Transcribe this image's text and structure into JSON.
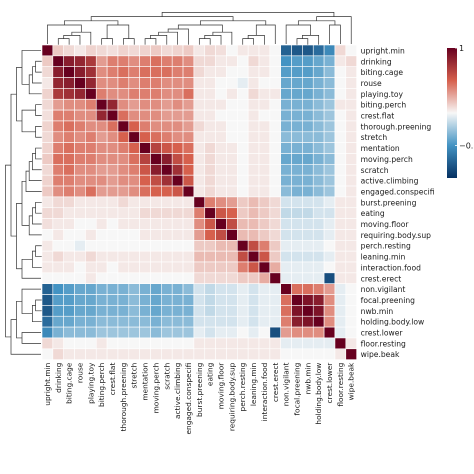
{
  "chart_data": {
    "type": "heatmap",
    "labels": [
      "upright.min",
      "drinking",
      "biting.cage",
      "rouse",
      "playing.toy",
      "biting.perch",
      "crest.flat",
      "thorough.preening",
      "stretch",
      "mentation",
      "moving.perch",
      "scratch",
      "active.climbing",
      "engaged.conspecifi",
      "burst.preening",
      "eating",
      "moving.floor",
      "requiring.body.sup",
      "perch.resting",
      "leaning.min",
      "interaction.food",
      "crest.erect",
      "non.vigilant",
      "focal.preening",
      "nwb.min",
      "holding.body.low",
      "crest.lower",
      "floor.resting",
      "wipe.beak"
    ],
    "values": [
      [
        1.0,
        0.15,
        0.1,
        0.05,
        0.12,
        0.1,
        0.08,
        0.12,
        0.1,
        0.12,
        0.15,
        0.1,
        0.12,
        0.15,
        0.05,
        0.1,
        0.08,
        0.0,
        0.05,
        0.05,
        0.05,
        0.0,
        -0.75,
        -0.8,
        -0.8,
        -0.7,
        -0.55,
        0.1,
        0.0
      ],
      [
        0.15,
        1.0,
        0.85,
        0.8,
        0.7,
        0.3,
        0.4,
        0.4,
        0.35,
        0.4,
        0.45,
        0.4,
        0.4,
        0.35,
        0.1,
        0.1,
        0.05,
        0.05,
        0.0,
        0.1,
        0.05,
        0.0,
        -0.5,
        -0.45,
        -0.45,
        -0.4,
        -0.35,
        0.05,
        0.1
      ],
      [
        0.1,
        0.85,
        1.0,
        0.85,
        0.75,
        0.35,
        0.4,
        0.45,
        0.4,
        0.45,
        0.45,
        0.45,
        0.4,
        0.4,
        0.1,
        0.05,
        0.05,
        0.0,
        0.0,
        0.05,
        0.05,
        0.0,
        -0.45,
        -0.45,
        -0.45,
        -0.4,
        -0.3,
        0.0,
        0.05
      ],
      [
        0.05,
        0.8,
        0.85,
        1.0,
        0.8,
        0.35,
        0.35,
        0.4,
        0.35,
        0.4,
        0.4,
        0.35,
        0.35,
        0.35,
        0.05,
        0.05,
        0.0,
        0.0,
        -0.05,
        0.05,
        0.0,
        0.0,
        -0.4,
        -0.4,
        -0.4,
        -0.35,
        -0.3,
        0.0,
        0.05
      ],
      [
        0.12,
        0.7,
        0.75,
        0.8,
        1.0,
        0.4,
        0.35,
        0.35,
        0.4,
        0.4,
        0.4,
        0.35,
        0.35,
        0.45,
        0.05,
        0.05,
        0.0,
        0.05,
        0.0,
        0.1,
        0.05,
        0.05,
        -0.4,
        -0.4,
        -0.4,
        -0.35,
        -0.3,
        0.0,
        0.05
      ],
      [
        0.1,
        0.3,
        0.35,
        0.35,
        0.4,
        1.0,
        0.8,
        0.35,
        0.3,
        0.35,
        0.35,
        0.3,
        0.35,
        0.3,
        0.05,
        0.05,
        0.05,
        0.0,
        0.0,
        0.05,
        0.05,
        0.0,
        -0.35,
        -0.35,
        -0.35,
        -0.3,
        -0.25,
        0.05,
        0.05
      ],
      [
        0.08,
        0.4,
        0.4,
        0.35,
        0.35,
        0.8,
        1.0,
        0.45,
        0.35,
        0.35,
        0.35,
        0.3,
        0.3,
        0.3,
        0.05,
        0.05,
        0.0,
        0.0,
        0.0,
        0.05,
        0.0,
        0.0,
        -0.35,
        -0.35,
        -0.35,
        -0.3,
        -0.25,
        0.0,
        0.05
      ],
      [
        0.12,
        0.4,
        0.45,
        0.4,
        0.35,
        0.35,
        0.45,
        1.0,
        0.5,
        0.4,
        0.35,
        0.35,
        0.35,
        0.3,
        0.1,
        0.05,
        0.05,
        0.0,
        0.0,
        0.05,
        0.05,
        0.0,
        -0.35,
        -0.35,
        -0.35,
        -0.3,
        -0.25,
        0.0,
        0.05
      ],
      [
        0.1,
        0.35,
        0.4,
        0.35,
        0.4,
        0.3,
        0.35,
        0.5,
        1.0,
        0.5,
        0.45,
        0.4,
        0.35,
        0.35,
        0.05,
        0.05,
        0.05,
        0.0,
        0.0,
        0.05,
        0.05,
        0.0,
        -0.3,
        -0.3,
        -0.3,
        -0.3,
        -0.25,
        0.0,
        0.05
      ],
      [
        0.12,
        0.4,
        0.45,
        0.4,
        0.4,
        0.35,
        0.35,
        0.4,
        0.5,
        1.0,
        0.65,
        0.55,
        0.5,
        0.45,
        0.05,
        0.1,
        0.05,
        0.05,
        0.0,
        0.05,
        0.05,
        0.0,
        -0.35,
        -0.35,
        -0.35,
        -0.3,
        -0.25,
        0.0,
        0.05
      ],
      [
        0.15,
        0.45,
        0.45,
        0.4,
        0.4,
        0.35,
        0.35,
        0.35,
        0.45,
        0.65,
        1.0,
        0.85,
        0.6,
        0.5,
        0.05,
        0.1,
        0.05,
        0.05,
        0.0,
        0.05,
        0.05,
        0.0,
        -0.4,
        -0.4,
        -0.4,
        -0.35,
        -0.3,
        0.0,
        0.05
      ],
      [
        0.1,
        0.4,
        0.45,
        0.35,
        0.35,
        0.3,
        0.3,
        0.35,
        0.4,
        0.55,
        0.85,
        1.0,
        0.75,
        0.5,
        0.05,
        0.1,
        0.05,
        0.05,
        0.0,
        0.05,
        0.05,
        0.0,
        -0.35,
        -0.35,
        -0.35,
        -0.3,
        -0.25,
        0.0,
        0.05
      ],
      [
        0.12,
        0.4,
        0.4,
        0.35,
        0.35,
        0.35,
        0.3,
        0.35,
        0.35,
        0.5,
        0.6,
        0.75,
        1.0,
        0.55,
        0.05,
        0.1,
        0.05,
        0.05,
        0.0,
        0.05,
        0.05,
        0.0,
        -0.35,
        -0.35,
        -0.35,
        -0.3,
        -0.25,
        0.0,
        0.05
      ],
      [
        0.15,
        0.35,
        0.4,
        0.35,
        0.45,
        0.3,
        0.3,
        0.3,
        0.35,
        0.45,
        0.5,
        0.5,
        0.55,
        1.0,
        0.05,
        0.1,
        0.05,
        0.05,
        0.0,
        0.05,
        0.05,
        0.0,
        -0.3,
        -0.35,
        -0.35,
        -0.3,
        -0.25,
        0.0,
        0.05
      ],
      [
        0.05,
        0.1,
        0.1,
        0.05,
        0.05,
        0.05,
        0.05,
        0.1,
        0.05,
        0.05,
        0.05,
        0.05,
        0.05,
        0.05,
        1.0,
        0.4,
        0.35,
        0.3,
        0.15,
        0.2,
        0.15,
        0.1,
        -0.1,
        -0.1,
        -0.1,
        -0.1,
        -0.05,
        0.05,
        0.05
      ],
      [
        0.1,
        0.1,
        0.05,
        0.05,
        0.05,
        0.05,
        0.05,
        0.05,
        0.05,
        0.1,
        0.1,
        0.1,
        0.1,
        0.1,
        0.4,
        1.0,
        0.55,
        0.5,
        0.15,
        0.2,
        0.15,
        0.1,
        -0.15,
        -0.15,
        -0.15,
        -0.1,
        -0.1,
        0.05,
        0.05
      ],
      [
        0.08,
        0.05,
        0.05,
        0.0,
        0.0,
        0.05,
        0.0,
        0.05,
        0.05,
        0.05,
        0.05,
        0.05,
        0.05,
        0.05,
        0.35,
        0.55,
        1.0,
        0.6,
        0.2,
        0.2,
        0.15,
        0.1,
        -0.1,
        -0.1,
        -0.1,
        -0.1,
        -0.05,
        0.05,
        0.05
      ],
      [
        0.0,
        0.05,
        0.0,
        0.0,
        0.05,
        0.0,
        0.0,
        0.0,
        0.0,
        0.05,
        0.05,
        0.05,
        0.05,
        0.05,
        0.3,
        0.5,
        0.6,
        1.0,
        0.2,
        0.2,
        0.15,
        0.1,
        -0.1,
        -0.1,
        -0.1,
        -0.1,
        -0.05,
        0.05,
        0.05
      ],
      [
        0.05,
        0.0,
        0.0,
        -0.05,
        0.0,
        0.0,
        0.0,
        0.0,
        0.0,
        0.0,
        0.0,
        0.0,
        0.0,
        0.0,
        0.15,
        0.15,
        0.2,
        0.2,
        1.0,
        0.6,
        0.4,
        0.15,
        -0.05,
        -0.05,
        -0.05,
        -0.05,
        0.0,
        0.05,
        0.05
      ],
      [
        0.05,
        0.1,
        0.05,
        0.05,
        0.1,
        0.05,
        0.05,
        0.05,
        0.05,
        0.05,
        0.05,
        0.05,
        0.05,
        0.05,
        0.2,
        0.2,
        0.2,
        0.2,
        0.6,
        1.0,
        0.55,
        0.15,
        -0.1,
        -0.1,
        -0.1,
        -0.1,
        -0.05,
        0.05,
        0.05
      ],
      [
        0.05,
        0.05,
        0.05,
        0.0,
        0.05,
        0.05,
        0.0,
        0.05,
        0.05,
        0.05,
        0.05,
        0.05,
        0.05,
        0.05,
        0.15,
        0.15,
        0.15,
        0.15,
        0.4,
        0.55,
        1.0,
        0.25,
        -0.05,
        -0.05,
        -0.05,
        -0.05,
        0.0,
        0.05,
        0.05
      ],
      [
        0.0,
        0.0,
        0.0,
        0.0,
        0.05,
        0.0,
        0.0,
        0.0,
        0.0,
        0.0,
        0.0,
        0.0,
        0.0,
        0.0,
        0.1,
        0.1,
        0.1,
        0.1,
        0.15,
        0.15,
        0.25,
        1.0,
        -0.05,
        -0.05,
        -0.05,
        -0.05,
        -0.85,
        0.05,
        0.05
      ],
      [
        -0.75,
        -0.5,
        -0.45,
        -0.4,
        -0.4,
        -0.35,
        -0.35,
        -0.35,
        -0.3,
        -0.35,
        -0.4,
        -0.35,
        -0.35,
        -0.3,
        -0.1,
        -0.15,
        -0.1,
        -0.1,
        -0.05,
        -0.1,
        -0.05,
        -0.05,
        1.0,
        0.45,
        0.45,
        0.4,
        0.3,
        -0.05,
        0.0
      ],
      [
        -0.8,
        -0.45,
        -0.45,
        -0.4,
        -0.4,
        -0.35,
        -0.35,
        -0.35,
        -0.3,
        -0.35,
        -0.4,
        -0.35,
        -0.35,
        -0.35,
        -0.1,
        -0.15,
        -0.1,
        -0.1,
        -0.05,
        -0.1,
        -0.05,
        -0.05,
        0.45,
        1.0,
        0.9,
        0.85,
        0.35,
        -0.05,
        0.0
      ],
      [
        -0.8,
        -0.45,
        -0.45,
        -0.4,
        -0.4,
        -0.35,
        -0.35,
        -0.35,
        -0.3,
        -0.35,
        -0.4,
        -0.35,
        -0.35,
        -0.35,
        -0.1,
        -0.15,
        -0.1,
        -0.1,
        -0.05,
        -0.1,
        -0.05,
        -0.05,
        0.45,
        0.9,
        1.0,
        0.9,
        0.35,
        -0.05,
        0.0
      ],
      [
        -0.7,
        -0.4,
        -0.4,
        -0.35,
        -0.35,
        -0.3,
        -0.3,
        -0.3,
        -0.3,
        -0.3,
        -0.35,
        -0.3,
        -0.3,
        -0.3,
        -0.1,
        -0.1,
        -0.1,
        -0.1,
        -0.05,
        -0.1,
        -0.05,
        -0.05,
        0.4,
        0.85,
        0.9,
        1.0,
        0.35,
        -0.05,
        0.0
      ],
      [
        -0.55,
        -0.35,
        -0.3,
        -0.3,
        -0.3,
        -0.25,
        -0.25,
        -0.25,
        -0.25,
        -0.25,
        -0.3,
        -0.25,
        -0.25,
        -0.25,
        -0.05,
        -0.1,
        -0.05,
        -0.05,
        0.0,
        -0.05,
        0.0,
        -0.85,
        0.3,
        0.35,
        0.35,
        0.35,
        1.0,
        -0.05,
        0.0
      ],
      [
        0.1,
        0.05,
        0.0,
        0.0,
        0.0,
        0.05,
        0.0,
        0.0,
        0.0,
        0.0,
        0.0,
        0.0,
        0.0,
        0.0,
        0.05,
        0.05,
        0.05,
        0.05,
        0.05,
        0.05,
        0.05,
        0.05,
        -0.05,
        -0.05,
        -0.05,
        -0.05,
        -0.05,
        1.0,
        0.05
      ],
      [
        0.0,
        0.1,
        0.05,
        0.05,
        0.05,
        0.05,
        0.05,
        0.05,
        0.05,
        0.05,
        0.05,
        0.05,
        0.05,
        0.05,
        0.05,
        0.05,
        0.05,
        0.05,
        0.05,
        0.05,
        0.05,
        0.05,
        0.0,
        0.0,
        0.0,
        0.0,
        0.0,
        0.05,
        1.0
      ]
    ],
    "colorbar": {
      "ticks": [
        1,
        -0.5
      ],
      "tick_labels": [
        "1",
        "−0.5"
      ],
      "range": [
        -1,
        1
      ],
      "colors": [
        "#053061",
        "#4393c3",
        "#f7f7f7",
        "#d6604d",
        "#67001f"
      ]
    },
    "dendrograms": true,
    "grid_color": "#ffffff"
  }
}
